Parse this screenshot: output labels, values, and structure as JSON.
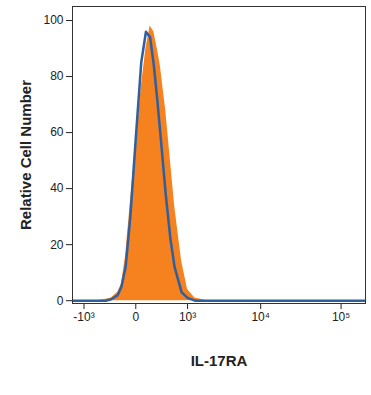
{
  "chart_data": {
    "type": "histogram_overlay",
    "x_label": "IL-17RA",
    "y_label": "Relative Cell Number",
    "log": "x",
    "x": [
      -1500,
      -1000,
      -600,
      -400,
      -300,
      -200,
      -150,
      -100,
      -50,
      0,
      50,
      100,
      150,
      200,
      250,
      300,
      400,
      500,
      600,
      800,
      1000,
      1300,
      2000,
      5000,
      10000,
      100000,
      200000
    ],
    "series": [
      {
        "type": "area",
        "color": "#f5821f",
        "values": [
          0,
          0,
          0,
          0.5,
          1,
          3,
          6,
          16,
          35,
          55,
          76,
          90,
          98,
          96,
          90,
          84,
          68,
          50,
          34,
          14,
          4,
          1,
          0,
          0,
          0,
          0,
          0
        ]
      },
      {
        "type": "line",
        "color": "#2e5fa0",
        "values": [
          0,
          0,
          0,
          0,
          0.5,
          2,
          5,
          12,
          30,
          58,
          85,
          96,
          94,
          84,
          72,
          60,
          38,
          22,
          12,
          3,
          1,
          0,
          0,
          0,
          0,
          0,
          0
        ]
      }
    ],
    "xlim": [
      -1500,
      200000
    ],
    "xticks": [
      {
        "value": -1000,
        "label": "-10³"
      },
      0,
      {
        "value": 1000,
        "label": "10³"
      },
      {
        "value": 10000,
        "label": "10⁴"
      },
      {
        "value": 100000,
        "label": "10⁵"
      }
    ],
    "ylim": [
      -1,
      105
    ],
    "yticks": [
      0,
      20,
      40,
      60,
      80,
      100
    ]
  }
}
